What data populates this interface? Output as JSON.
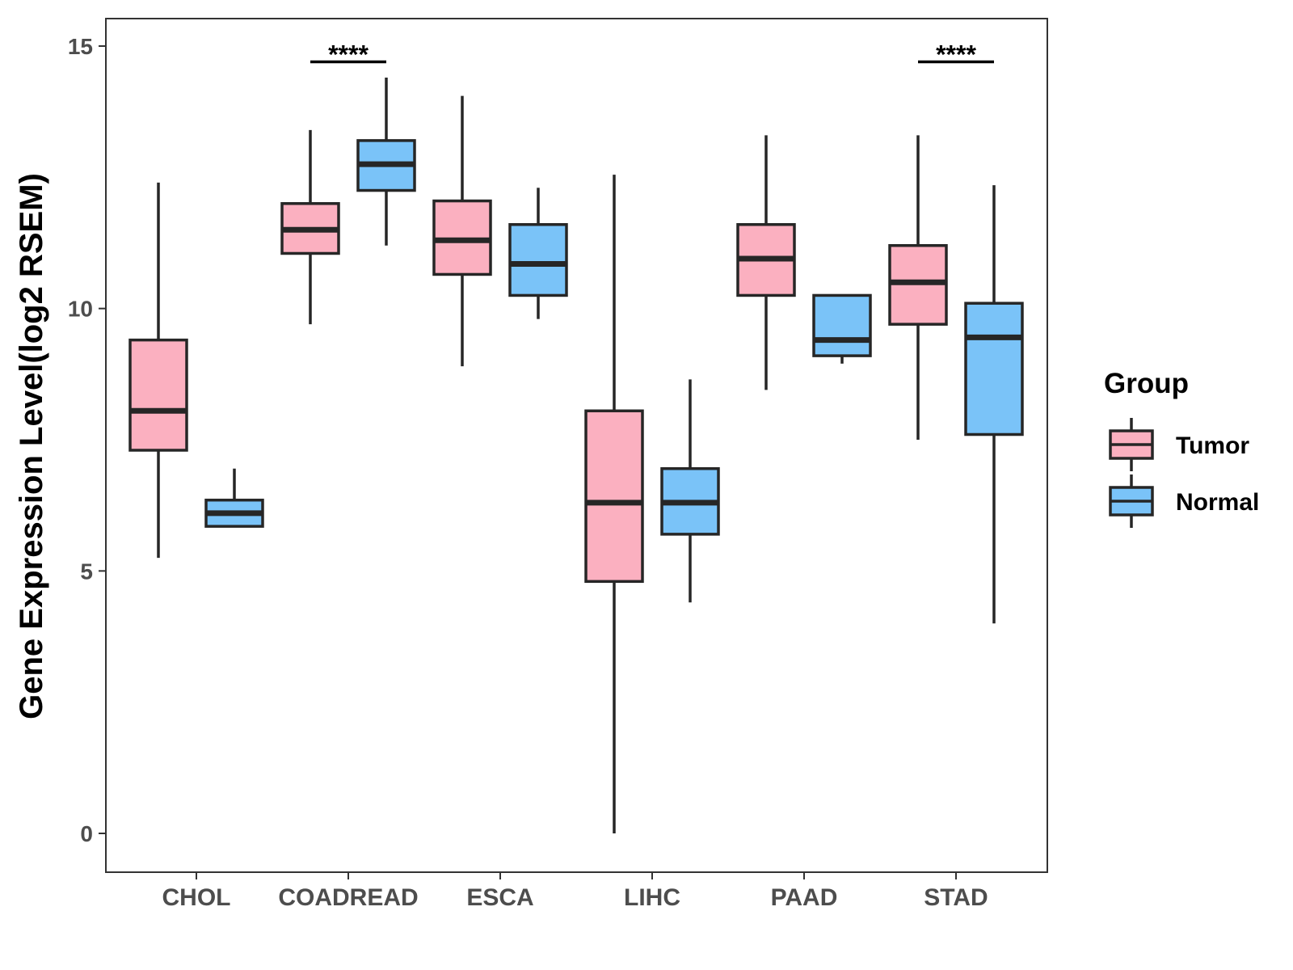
{
  "chart_data": {
    "type": "boxplot",
    "ylabel": "Gene Expression Level(log2 RSEM)",
    "xlabel": "",
    "ylim": [
      -0.7,
      15.6
    ],
    "yticks": [
      0,
      5,
      10,
      15
    ],
    "ytick_labels": [
      "0",
      "5",
      "10",
      "15"
    ],
    "categories": [
      "CHOL",
      "COADREAD",
      "ESCA",
      "LIHC",
      "PAAD",
      "STAD"
    ],
    "legend": {
      "title": "Group",
      "position": "right",
      "entries": [
        {
          "name": "Tumor",
          "color": "#FBB0C0"
        },
        {
          "name": "Normal",
          "color": "#7AC3F8"
        }
      ]
    },
    "series": [
      {
        "name": "Tumor",
        "color": "#FBB0C0",
        "boxes": [
          {
            "category": "CHOL",
            "whisker_low": 5.25,
            "q1": 7.3,
            "median": 8.05,
            "q3": 9.4,
            "whisker_high": 12.4
          },
          {
            "category": "COADREAD",
            "whisker_low": 9.7,
            "q1": 11.05,
            "median": 11.5,
            "q3": 12.0,
            "whisker_high": 13.4
          },
          {
            "category": "ESCA",
            "whisker_low": 8.9,
            "q1": 10.65,
            "median": 11.3,
            "q3": 12.05,
            "whisker_high": 14.05
          },
          {
            "category": "LIHC",
            "whisker_low": 0.0,
            "q1": 4.8,
            "median": 6.3,
            "q3": 8.05,
            "whisker_high": 12.55
          },
          {
            "category": "PAAD",
            "whisker_low": 8.45,
            "q1": 10.25,
            "median": 10.95,
            "q3": 11.6,
            "whisker_high": 13.3
          },
          {
            "category": "STAD",
            "whisker_low": 7.5,
            "q1": 9.7,
            "median": 10.5,
            "q3": 11.2,
            "whisker_high": 13.3
          }
        ]
      },
      {
        "name": "Normal",
        "color": "#7AC3F8",
        "boxes": [
          {
            "category": "CHOL",
            "whisker_low": 5.85,
            "q1": 5.85,
            "median": 6.1,
            "q3": 6.35,
            "whisker_high": 6.95
          },
          {
            "category": "COADREAD",
            "whisker_low": 11.2,
            "q1": 12.25,
            "median": 12.75,
            "q3": 13.2,
            "whisker_high": 14.4
          },
          {
            "category": "ESCA",
            "whisker_low": 9.8,
            "q1": 10.25,
            "median": 10.85,
            "q3": 11.6,
            "whisker_high": 12.3
          },
          {
            "category": "LIHC",
            "whisker_low": 4.4,
            "q1": 5.7,
            "median": 6.3,
            "q3": 6.95,
            "whisker_high": 8.65
          },
          {
            "category": "PAAD",
            "whisker_low": 8.95,
            "q1": 9.1,
            "median": 9.4,
            "q3": 10.25,
            "whisker_high": 10.25
          },
          {
            "category": "STAD",
            "whisker_low": 4.0,
            "q1": 7.6,
            "median": 9.45,
            "q3": 10.1,
            "whisker_high": 12.35
          }
        ]
      }
    ],
    "annotations": [
      {
        "category": "COADREAD",
        "text": "****",
        "y": 14.7
      },
      {
        "category": "STAD",
        "text": "****",
        "y": 14.7
      }
    ]
  }
}
